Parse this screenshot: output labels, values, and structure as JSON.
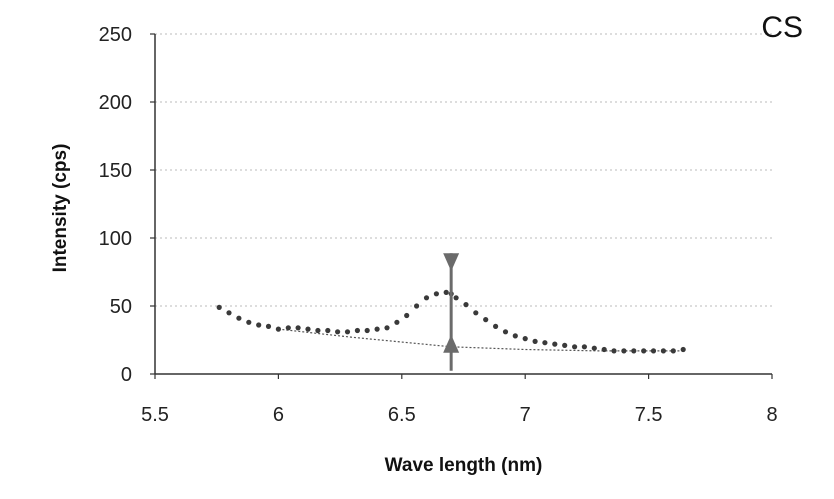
{
  "chart_data": {
    "type": "scatter",
    "title": "",
    "corner_label": "CS",
    "xlabel": "Wave length (nm)",
    "ylabel": "Intensity (cps)",
    "xlim": [
      5.5,
      8
    ],
    "ylim": [
      0,
      250
    ],
    "x_ticks": [
      "5.5",
      "6",
      "6.5",
      "7",
      "7.5",
      "8"
    ],
    "y_ticks": [
      "0",
      "50",
      "100",
      "150",
      "200",
      "250"
    ],
    "grid": "horizontal-dotted",
    "colors": {
      "points": "#3a3a3a",
      "baseline": "#555555",
      "marker": "#6b6b6b",
      "grid": "#bbbbbb"
    },
    "series": [
      {
        "name": "",
        "marker": "dot",
        "points": [
          [
            5.76,
            49
          ],
          [
            5.8,
            45
          ],
          [
            5.84,
            41
          ],
          [
            5.88,
            38
          ],
          [
            5.92,
            36
          ],
          [
            5.96,
            35
          ],
          [
            6.0,
            33
          ],
          [
            6.04,
            34
          ],
          [
            6.08,
            34
          ],
          [
            6.12,
            33
          ],
          [
            6.16,
            32
          ],
          [
            6.2,
            32
          ],
          [
            6.24,
            31
          ],
          [
            6.28,
            31
          ],
          [
            6.32,
            32
          ],
          [
            6.36,
            32
          ],
          [
            6.4,
            33
          ],
          [
            6.44,
            34
          ],
          [
            6.48,
            38
          ],
          [
            6.52,
            43
          ],
          [
            6.56,
            50
          ],
          [
            6.6,
            56
          ],
          [
            6.64,
            59
          ],
          [
            6.68,
            60
          ],
          [
            6.7,
            59
          ],
          [
            6.72,
            56
          ],
          [
            6.76,
            51
          ],
          [
            6.8,
            45
          ],
          [
            6.84,
            40
          ],
          [
            6.88,
            35
          ],
          [
            6.92,
            31
          ],
          [
            6.96,
            28
          ],
          [
            7.0,
            26
          ],
          [
            7.04,
            24
          ],
          [
            7.08,
            23
          ],
          [
            7.12,
            22
          ],
          [
            7.16,
            21
          ],
          [
            7.2,
            20
          ],
          [
            7.24,
            20
          ],
          [
            7.28,
            19
          ],
          [
            7.32,
            18
          ],
          [
            7.36,
            17
          ],
          [
            7.4,
            17
          ],
          [
            7.44,
            17
          ],
          [
            7.48,
            17
          ],
          [
            7.52,
            17
          ],
          [
            7.56,
            17
          ],
          [
            7.6,
            17
          ],
          [
            7.64,
            18
          ]
        ]
      },
      {
        "name": "",
        "style": "dotted-line",
        "points": [
          [
            6.0,
            33
          ],
          [
            6.3,
            27
          ],
          [
            6.7,
            20
          ],
          [
            7.0,
            18
          ],
          [
            7.3,
            17
          ],
          [
            7.64,
            17
          ]
        ]
      }
    ],
    "annotations": [
      {
        "type": "peak-height-arrow",
        "x": 6.7,
        "y_top": 80,
        "y_bottom": 20
      }
    ]
  }
}
